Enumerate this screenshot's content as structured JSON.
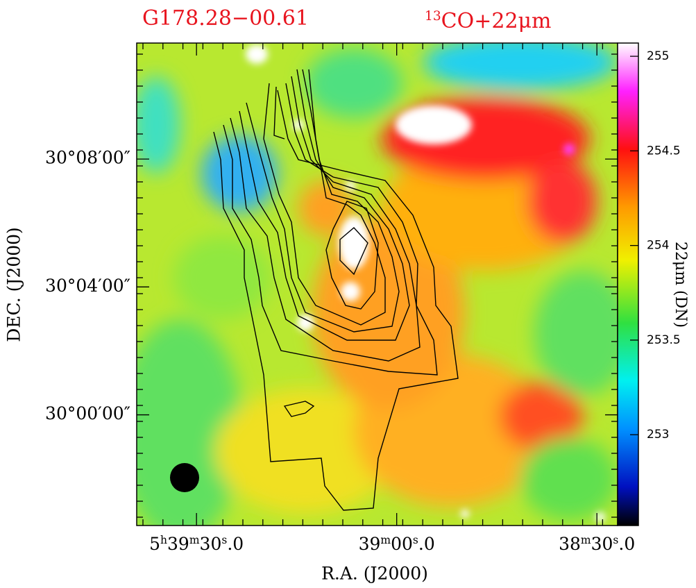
{
  "chart_data": {
    "type": "image",
    "title": "G178.28−00.61",
    "subtitle": [
      "13",
      "CO+22μm"
    ],
    "x_label": "R.A. (J2000)",
    "y_label": "DEC. (J2000)",
    "xlim": [
      19178.96,
      19106.9
    ],
    "xticks": [
      {
        "value": 19170,
        "label": [
          "5",
          "h",
          "39",
          "m",
          "30",
          "s",
          ".0"
        ]
      },
      {
        "value": 19140,
        "label": [
          "39",
          "m",
          "00",
          "s",
          ".0"
        ]
      },
      {
        "value": 19110,
        "label": [
          "38",
          "m",
          "30",
          "s",
          ".0"
        ]
      }
    ],
    "ylim": [
      29.9423,
      30.1938
    ],
    "yticks": [
      {
        "value": 30.13333,
        "label": "30°08′00″"
      },
      {
        "value": 30.06667,
        "label": "30°04′00″"
      },
      {
        "value": 30,
        "label": "30°00′00″"
      }
    ],
    "colorbar": {
      "label": "22μm (DN)",
      "clim": [
        252.52,
        255.07
      ],
      "ticks": [
        253,
        253.5,
        254,
        254.5,
        255
      ]
    }
  }
}
